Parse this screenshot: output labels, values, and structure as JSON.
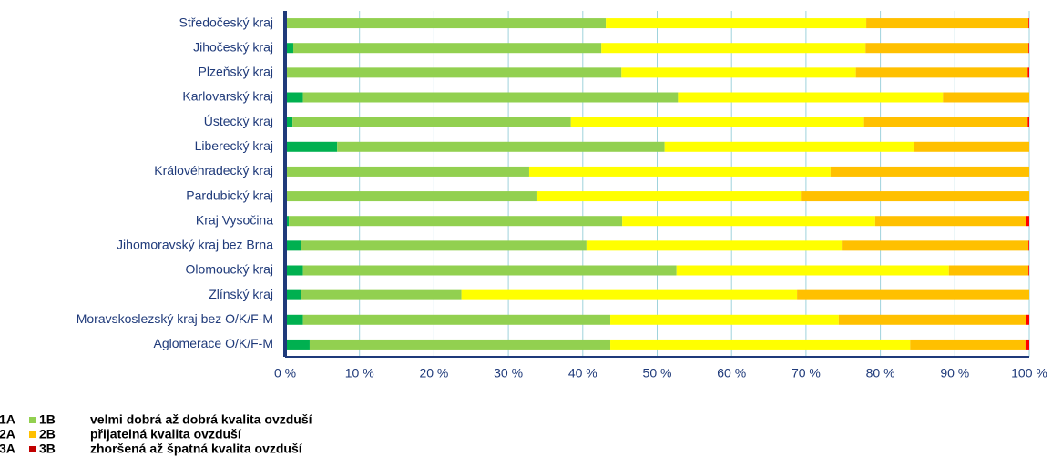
{
  "chart_data": {
    "type": "stacked-barh",
    "categories": [
      "Středočeský kraj",
      "Jihočeský kraj",
      "Plzeňský kraj",
      "Karlovarský kraj",
      "Ústecký kraj",
      "Liberecký kraj",
      "Královéhradecký kraj",
      "Pardubický kraj",
      "Kraj Vysočina",
      "Jihomoravský kraj bez Brna",
      "Olomoucký kraj",
      "Zlínský kraj",
      "Moravskoslezský kraj bez O/K/F-M",
      "Aglomerace O/K/F-M"
    ],
    "series": [
      {
        "name": "1A",
        "color": "#00b050",
        "values": [
          0,
          1.1,
          0,
          2.4,
          1,
          7,
          0,
          0,
          0.5,
          2.1,
          2.4,
          2.2,
          2.4,
          3.3
        ]
      },
      {
        "name": "1B",
        "color": "#92d050",
        "values": [
          43.1,
          41.4,
          45.2,
          50.4,
          37.4,
          44,
          32.8,
          33.9,
          44.8,
          38.4,
          50.2,
          21.5,
          41.3,
          40.4
        ]
      },
      {
        "name": "2A",
        "color": "#ffff00",
        "values": [
          35,
          35.5,
          31.5,
          35.6,
          39.4,
          33.5,
          40.5,
          35.4,
          34,
          34.3,
          36.6,
          45.1,
          30.7,
          40.3
        ]
      },
      {
        "name": "2B",
        "color": "#ffc000",
        "values": [
          21.8,
          21.9,
          23.1,
          11.6,
          22,
          15.5,
          26.7,
          30.7,
          20.3,
          25.1,
          10.7,
          31.2,
          25.2,
          15.5
        ]
      },
      {
        "name": "3A",
        "color": "#ff0000",
        "values": [
          0.1,
          0.1,
          0.2,
          0,
          0.2,
          0,
          0,
          0,
          0.4,
          0.1,
          0.1,
          0,
          0.4,
          0.5
        ]
      },
      {
        "name": "3B",
        "color": "#c00000",
        "values": [
          0,
          0,
          0,
          0,
          0,
          0,
          0,
          0,
          0,
          0,
          0,
          0,
          0,
          0
        ]
      }
    ],
    "legend_descriptions": [
      "velmi dobrá až dobrá kvalita ovzduší",
      "přijatelná kvalita ovzduší",
      "zhoršená až špatná kvalita ovzduší"
    ],
    "xlim": [
      0,
      100
    ],
    "xticks": [
      {
        "value": 0,
        "label": "0 %"
      },
      {
        "value": 10,
        "label": "10 %"
      },
      {
        "value": 20,
        "label": "20 %"
      },
      {
        "value": 30,
        "label": "30 %"
      },
      {
        "value": 40,
        "label": "40 %"
      },
      {
        "value": 50,
        "label": "50 %"
      },
      {
        "value": 60,
        "label": "60 %"
      },
      {
        "value": 70,
        "label": "70 %"
      },
      {
        "value": 80,
        "label": "80 %"
      },
      {
        "value": 90,
        "label": "90 %"
      },
      {
        "value": 100,
        "label": "100 %"
      }
    ],
    "grid": true
  }
}
